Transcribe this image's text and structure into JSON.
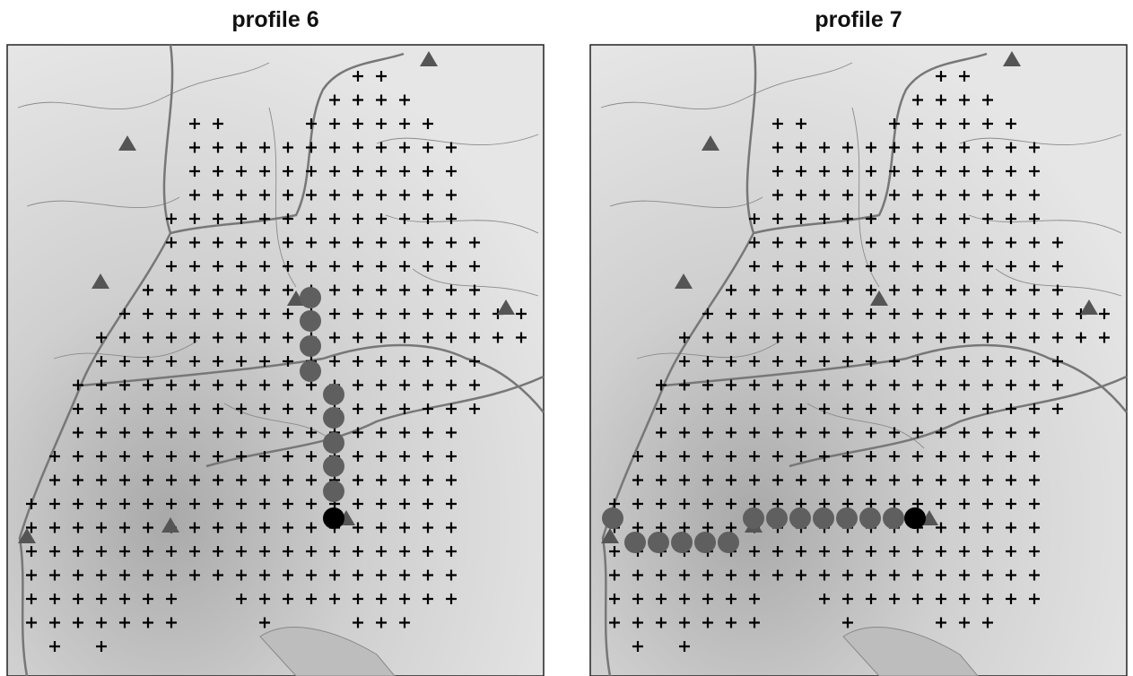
{
  "panels": [
    {
      "title": "profile 6"
    },
    {
      "title": "profile 7"
    }
  ]
}
